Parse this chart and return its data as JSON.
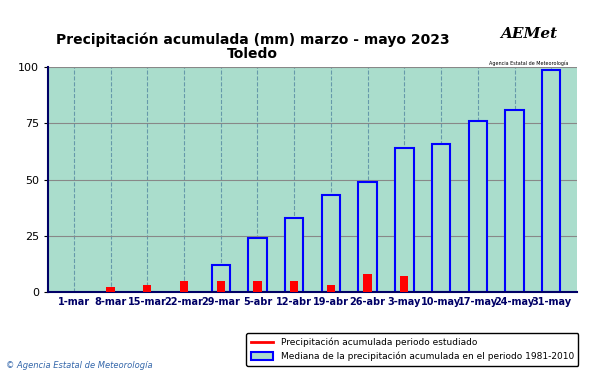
{
  "title_line1": "Precipitación acumulada (mm) marzo - mayo 2023",
  "title_line2": "Toledo",
  "categories": [
    "1-mar",
    "8-mar",
    "15-mar",
    "22-mar",
    "29-mar",
    "5-abr",
    "12-abr",
    "19-abr",
    "26-abr",
    "3-may",
    "10-may",
    "17-may",
    "24-may",
    "31-may"
  ],
  "red_values": [
    0,
    2,
    3,
    5,
    5,
    5,
    5,
    3,
    8,
    7,
    0,
    0,
    0,
    0
  ],
  "blue_values": [
    0,
    0,
    0,
    0,
    12,
    24,
    33,
    43,
    49,
    64,
    66,
    76,
    81,
    99
  ],
  "red_color": "#ff0000",
  "blue_color": "#0000ff",
  "plot_bg_color": "#aaddcc",
  "ylim": [
    0,
    100
  ],
  "yticks": [
    0,
    25,
    50,
    75,
    100
  ],
  "grid_h_color": "#888888",
  "grid_v_color": "#6699aa",
  "legend_red": "Precipitación acumulada periodo estudiado",
  "legend_blue": "Mediana de la precipitación acumulada en el periodo 1981-2010",
  "bar_width": 0.5,
  "footer_text": "© Agencia Estatal de Meteorología"
}
